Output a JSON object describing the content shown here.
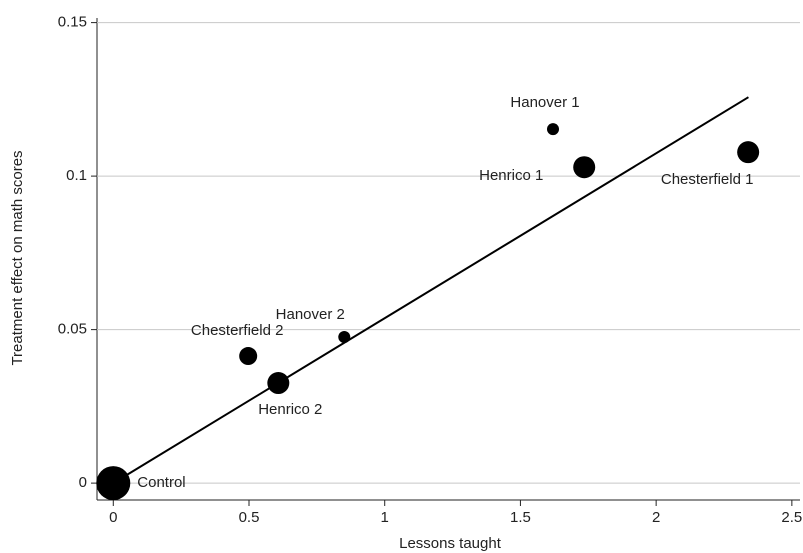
{
  "chart_data": {
    "type": "scatter",
    "x_label": "Lessons taught",
    "y_label": "Treatment effect on math scores",
    "point_labels": [
      "Control",
      "Chesterfield 2",
      "Henrico 2",
      "Hanover 2",
      "Hanover 1",
      "Henrico 1",
      "Chesterfield 1"
    ],
    "x": [
      0,
      0.497,
      0.608,
      0.851,
      1.62,
      1.735,
      2.339
    ],
    "values": [
      0,
      0.0414,
      0.0326,
      0.0476,
      0.1153,
      0.1029,
      0.1078
    ],
    "sizes": [
      17,
      9,
      11,
      6,
      6,
      11,
      11
    ],
    "color": "#000000",
    "trend_line": {
      "x": [
        0,
        2.34
      ],
      "y": [
        0,
        0.1257
      ]
    },
    "xlim": [
      -0.06,
      2.53
    ],
    "ylim": [
      -0.0055,
      0.1515
    ],
    "xticks": [
      0,
      0.5,
      1,
      1.5,
      2,
      2.5
    ],
    "yticks": [
      0,
      0.05,
      0.1,
      0.15
    ],
    "grid": true
  }
}
